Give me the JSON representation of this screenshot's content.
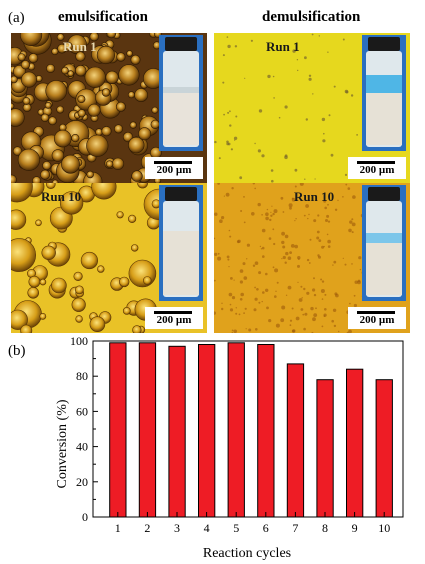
{
  "panel_a": {
    "label": "(a)",
    "col_left": "emulsification",
    "col_right": "demulsification",
    "images": [
      {
        "run": "Run 1",
        "scale": "200 µm",
        "kind": "emulsion-dark"
      },
      {
        "run": "Run 1",
        "scale": "200 µm",
        "kind": "yellow-clear"
      },
      {
        "run": "Run 10",
        "scale": "200 µm",
        "kind": "emulsion-yellow"
      },
      {
        "run": "Run 10",
        "scale": "200 µm",
        "kind": "orange-clear"
      }
    ]
  },
  "panel_b": {
    "label": "(b)"
  },
  "colors": {
    "bar": "#ee1c25",
    "axis": "#000000"
  },
  "chart_data": {
    "type": "bar",
    "categories": [
      "1",
      "2",
      "3",
      "4",
      "5",
      "6",
      "7",
      "8",
      "9",
      "10"
    ],
    "values": [
      99,
      99,
      97,
      98,
      99,
      98,
      87,
      78,
      84,
      78
    ],
    "xlabel": "Reaction cycles",
    "ylabel": "Conversion (%)",
    "ylim": [
      0,
      100
    ],
    "yticks": [
      "0",
      "20",
      "40",
      "60",
      "80",
      "100"
    ],
    "grid": false,
    "legend": "none"
  }
}
